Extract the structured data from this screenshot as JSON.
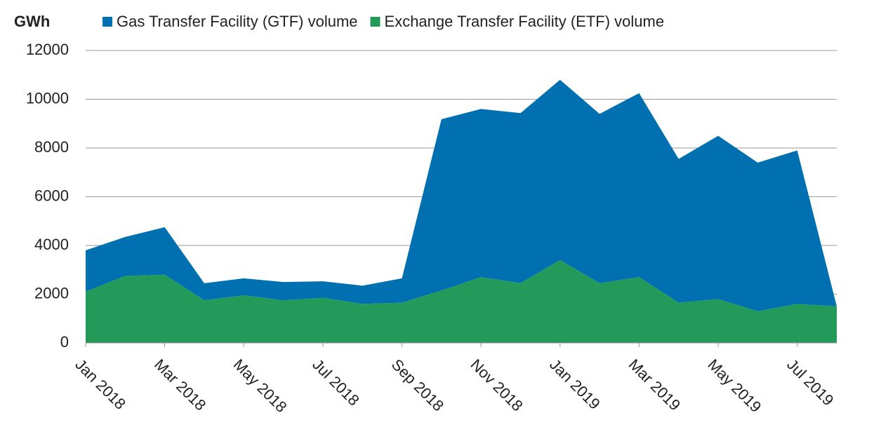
{
  "chart_data": {
    "type": "stacked_area",
    "y_label": "GWh",
    "categories": [
      "Jan 2018",
      null,
      "Mar 2018",
      null,
      "May 2018",
      null,
      "Jul 2018",
      null,
      "Sep 2018",
      null,
      "Nov 2018",
      null,
      "Jan 2019",
      null,
      "Mar 2019",
      null,
      "May 2019",
      null,
      "Jul 2019",
      null
    ],
    "series": [
      {
        "name": "Gas Transfer Facility (GTF) volume",
        "color": "#0070b0",
        "values": [
          1700,
          1600,
          1950,
          700,
          700,
          750,
          680,
          750,
          1000,
          7030,
          6900,
          6980,
          7400,
          6950,
          7550,
          5900,
          6700,
          6100,
          6300,
          0
        ]
      },
      {
        "name": "Exchange Transfer Facility (ETF) volume",
        "color": "#23995a",
        "values": [
          2100,
          2750,
          2800,
          1750,
          1950,
          1750,
          1850,
          1600,
          1650,
          2150,
          2700,
          2450,
          3400,
          2450,
          2700,
          1650,
          1800,
          1300,
          1600,
          1500
        ]
      }
    ],
    "ylim": [
      0,
      12000
    ],
    "yticks": [
      0,
      2000,
      4000,
      6000,
      8000,
      10000,
      12000
    ],
    "grid": true
  }
}
